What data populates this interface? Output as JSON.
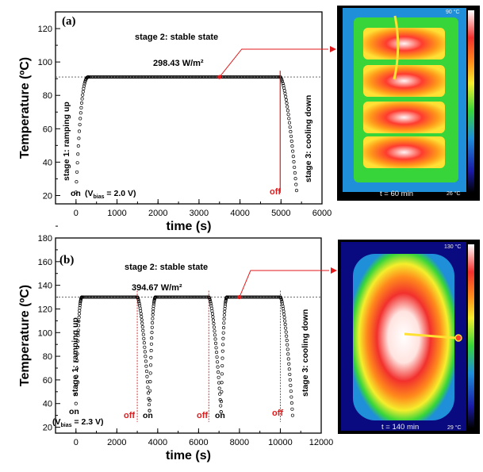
{
  "chart_data": [
    {
      "type": "scatter",
      "panel_label": "(a)",
      "xlabel": "time (s)",
      "ylabel": "Temperature (ºC)",
      "xlim": [
        -500,
        6000
      ],
      "ylim": [
        15,
        130
      ],
      "xticks": [
        0,
        1000,
        2000,
        3000,
        4000,
        5000,
        6000
      ],
      "yticks": [
        20,
        40,
        60,
        80,
        100,
        120
      ],
      "plateau_temperature": 91,
      "annotations": {
        "stage2": "stage 2: stable state",
        "power": "298.43 W/m²",
        "stage1": "stage 1: ramping up",
        "stage3": "stage 3: cooling down",
        "on": "on",
        "vbias": "(V_bias = 2.0 V)",
        "off": "off"
      },
      "off_times": [
        4980
      ],
      "marked_point": [
        3500,
        91
      ],
      "segments": [
        {
          "phase": "ramp_up",
          "t_start": 0,
          "t_end": 300,
          "temp_start": 22,
          "temp_end": 91
        },
        {
          "phase": "stable",
          "t_start": 300,
          "t_end": 4980,
          "temp": 91
        },
        {
          "phase": "cooling",
          "t_start": 4980,
          "t_end": 5380,
          "temp_start": 91,
          "temp_end": 23
        }
      ],
      "thermal_image": {
        "caption": "t = 60 min",
        "max_label": "90 °C",
        "min_label": "26 °C"
      }
    },
    {
      "type": "scatter",
      "panel_label": "(b)",
      "xlabel": "time (s)",
      "ylabel": "Temperature (ºC)",
      "xlim": [
        -1000,
        12000
      ],
      "ylim": [
        15,
        180
      ],
      "xticks": [
        0,
        2000,
        4000,
        6000,
        8000,
        10000,
        12000
      ],
      "yticks": [
        20,
        40,
        60,
        80,
        100,
        120,
        140,
        160,
        180
      ],
      "plateau_temperature": 130,
      "annotations": {
        "stage2": "stage 2: stable state",
        "power": "394.67 W/m²",
        "stage1": "stage 1: ramping up",
        "stage3": "stage 3: cooling down",
        "on": "on",
        "vbias": "(V_bias = 2.3 V)",
        "off": "off"
      },
      "off_times": [
        3000,
        6500,
        10000
      ],
      "on_times": [
        3600,
        7100
      ],
      "marked_point": [
        8000,
        130
      ],
      "segments": [
        {
          "phase": "ramp_up",
          "t_start": 0,
          "t_end": 300,
          "temp_start": 40,
          "temp_end": 130
        },
        {
          "phase": "stable",
          "t_start": 300,
          "t_end": 3000,
          "temp": 130
        },
        {
          "phase": "cooling",
          "t_start": 3000,
          "t_end": 3600,
          "temp_start": 130,
          "temp_end": 34
        },
        {
          "phase": "ramp_up",
          "t_start": 3600,
          "t_end": 3900,
          "temp_start": 34,
          "temp_end": 130
        },
        {
          "phase": "stable",
          "t_start": 3900,
          "t_end": 6500,
          "temp": 130
        },
        {
          "phase": "cooling",
          "t_start": 6500,
          "t_end": 7100,
          "temp_start": 130,
          "temp_end": 33
        },
        {
          "phase": "ramp_up",
          "t_start": 7100,
          "t_end": 7400,
          "temp_start": 33,
          "temp_end": 130
        },
        {
          "phase": "stable",
          "t_start": 7400,
          "t_end": 10000,
          "temp": 130
        },
        {
          "phase": "cooling",
          "t_start": 10000,
          "t_end": 10600,
          "temp_start": 130,
          "temp_end": 30
        }
      ],
      "thermal_image": {
        "caption": "t = 140 min",
        "max_label": "130 °C",
        "min_label": "29 °C"
      }
    }
  ],
  "colors": {
    "off_marker": "#e31a1c",
    "callout": "#e31a1c",
    "curve": "#000000",
    "reference_line": "#555555"
  }
}
